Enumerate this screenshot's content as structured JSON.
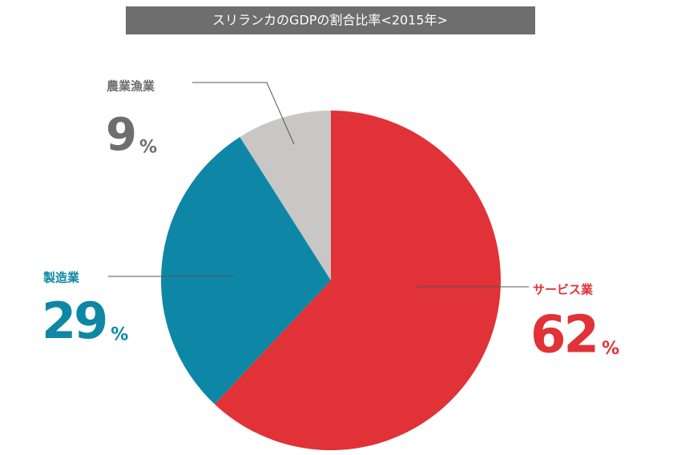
{
  "chart_data": {
    "type": "pie",
    "title": "スリランカのGDPの割合比率<2015年>",
    "categories": [
      "サービス業",
      "製造業",
      "農業漁業"
    ],
    "values": [
      62,
      29,
      9
    ],
    "unit": "%",
    "colors": [
      "#e03237",
      "#0e87a6",
      "#c9c7c6"
    ],
    "label_colors": [
      "#e03237",
      "#0e87a6",
      "#6e6e6e"
    ]
  }
}
